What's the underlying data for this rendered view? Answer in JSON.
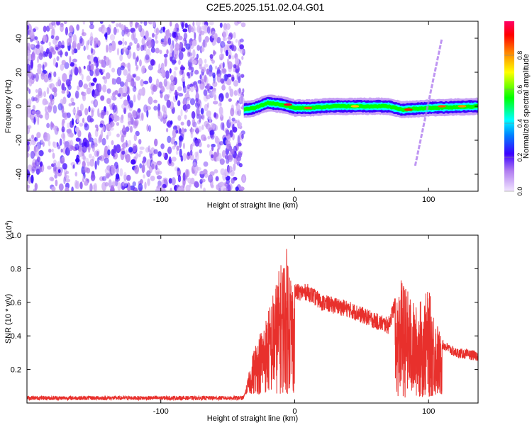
{
  "figure": {
    "title": "C2E5.2025.151.02.04.G01"
  },
  "chart_data": [
    {
      "type": "heatmap",
      "xlabel": "Height of straight line (km)",
      "ylabel": "Frequency (Hz)",
      "xlim": [
        -200,
        137
      ],
      "ylim": [
        -50,
        50
      ],
      "xticks": [
        -100,
        0,
        100
      ],
      "yticks": [
        -40,
        -20,
        0,
        20,
        40
      ],
      "colorbar": {
        "label": "Normalized spectral amplitude",
        "range": [
          0,
          1
        ],
        "ticks": [
          "0.0",
          "0.2",
          "0.4",
          "0.6",
          "0.8"
        ],
        "colormap": [
          "#f2e6ff",
          "#8a2be2",
          "#0000ff",
          "#00ffff",
          "#00ff00",
          "#ffff00",
          "#ff8000",
          "#ff0000",
          "#ff0066"
        ]
      },
      "features": {
        "noise_region_x": [
          -200,
          -38
        ],
        "noise_level": 0.2,
        "main_band": [
          {
            "x": -38,
            "freq": -2
          },
          {
            "x": -30,
            "freq": -1
          },
          {
            "x": -20,
            "freq": 2
          },
          {
            "x": -10,
            "freq": 1
          },
          {
            "x": 0,
            "freq": -1
          },
          {
            "x": 10,
            "freq": -1
          },
          {
            "x": 30,
            "freq": 0
          },
          {
            "x": 70,
            "freq": 0
          },
          {
            "x": 80,
            "freq": -2
          },
          {
            "x": 100,
            "freq": -1
          },
          {
            "x": 137,
            "freq": 0
          }
        ],
        "peaks": [
          {
            "x": -5,
            "freq": 1,
            "amplitude": 0.95
          },
          {
            "x": 10,
            "freq": -1,
            "amplitude": 0.85
          },
          {
            "x": 45,
            "freq": 0,
            "amplitude": 0.75
          },
          {
            "x": 85,
            "freq": -2,
            "amplitude": 0.9
          },
          {
            "x": 110,
            "freq": 0,
            "amplitude": 0.85
          },
          {
            "x": 125,
            "freq": 0,
            "amplitude": 0.8
          }
        ],
        "diagonal_streak": [
          {
            "x": 90,
            "freq": -35
          },
          {
            "x": 110,
            "freq": 40
          }
        ]
      }
    },
    {
      "type": "line",
      "xlabel": "Height of straight line (km)",
      "ylabel": "SNR (10 * v/v)",
      "scale_label": "(x10",
      "scale_exponent": "4",
      "xlim": [
        -200,
        137
      ],
      "ylim": [
        0,
        1.0
      ],
      "xticks": [
        -100,
        0,
        100
      ],
      "yticks": [
        0.2,
        0.4,
        0.6,
        0.8,
        1.0
      ],
      "ytick_labels": [
        "0.2",
        "0.4",
        "0.6",
        "0.8",
        "1.0"
      ],
      "color": "#e8302c",
      "envelope": [
        {
          "x": -200,
          "y": 0.03
        },
        {
          "x": -38,
          "y": 0.03
        },
        {
          "x": -30,
          "y": 0.35
        },
        {
          "x": -20,
          "y": 0.55
        },
        {
          "x": -10,
          "y": 0.85
        },
        {
          "x": -5,
          "y": 0.95
        },
        {
          "x": 0,
          "y": 0.66
        },
        {
          "x": 10,
          "y": 0.66
        },
        {
          "x": 20,
          "y": 0.6
        },
        {
          "x": 40,
          "y": 0.56
        },
        {
          "x": 60,
          "y": 0.49
        },
        {
          "x": 70,
          "y": 0.46
        },
        {
          "x": 80,
          "y": 0.72
        },
        {
          "x": 90,
          "y": 0.55
        },
        {
          "x": 100,
          "y": 0.65
        },
        {
          "x": 110,
          "y": 0.35
        },
        {
          "x": 120,
          "y": 0.3
        },
        {
          "x": 137,
          "y": 0.28
        }
      ]
    }
  ]
}
